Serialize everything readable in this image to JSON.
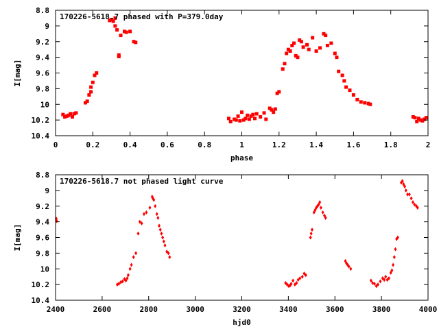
{
  "chart_data": [
    {
      "type": "scatter",
      "title": "170226-5618.7 phased with P=379.0day",
      "xlabel": "phase",
      "ylabel": "I[mag]",
      "xlim": [
        0,
        2
      ],
      "ylim": [
        10.4,
        8.8
      ],
      "y_inverted": true,
      "xticks": [
        "0",
        "0.2",
        "0.4",
        "0.6",
        "0.8",
        "1",
        "1.2",
        "1.4",
        "1.6",
        "1.8",
        "2"
      ],
      "xtick_values": [
        0,
        0.2,
        0.4,
        0.6,
        0.8,
        1.0,
        1.2,
        1.4,
        1.6,
        1.8,
        2.0
      ],
      "yticks": [
        "8.8",
        "9",
        "9.2",
        "9.4",
        "9.6",
        "9.8",
        "10",
        "10.2",
        "10.4"
      ],
      "ytick_values": [
        8.8,
        9.0,
        9.2,
        9.4,
        9.6,
        9.8,
        10.0,
        10.2,
        10.4
      ],
      "grid": false,
      "legend": "none",
      "marker_color": "#ff0000",
      "series": [
        {
          "x": [
            0.04,
            0.05,
            0.06,
            0.07,
            0.08,
            0.09,
            0.1,
            0.11,
            0.16,
            0.17,
            0.18,
            0.19,
            0.19,
            0.2,
            0.21,
            0.22,
            0.29,
            0.3,
            0.31,
            0.32,
            0.32,
            0.33,
            0.34,
            0.34,
            0.35,
            0.37,
            0.38,
            0.4,
            0.42,
            0.43,
            0.93,
            0.94,
            0.96,
            0.97,
            0.98,
            0.99,
            1.0,
            1.01,
            1.02,
            1.03,
            1.04,
            1.05,
            1.06,
            1.07,
            1.08,
            1.1,
            1.12,
            1.13,
            1.15,
            1.16,
            1.17,
            1.18,
            1.19,
            1.2,
            1.22,
            1.23,
            1.24,
            1.25,
            1.26,
            1.27,
            1.28,
            1.29,
            1.3,
            1.31,
            1.32,
            1.33,
            1.35,
            1.36,
            1.38,
            1.4,
            1.42,
            1.44,
            1.45,
            1.46,
            1.48,
            1.5,
            1.51,
            1.52,
            1.54,
            1.55,
            1.56,
            1.58,
            1.6,
            1.62,
            1.64,
            1.66,
            1.68,
            1.69,
            1.92,
            1.93,
            1.94,
            1.95,
            1.96,
            1.97,
            1.98,
            1.99
          ],
          "y": [
            10.13,
            10.16,
            10.15,
            10.14,
            10.12,
            10.16,
            10.12,
            10.11,
            9.98,
            9.96,
            9.88,
            9.84,
            9.78,
            9.72,
            9.63,
            9.6,
            8.93,
            8.92,
            8.94,
            8.9,
            9.0,
            9.05,
            9.37,
            9.39,
            9.12,
            9.07,
            9.08,
            9.07,
            9.2,
            9.21,
            10.18,
            10.22,
            10.19,
            10.2,
            10.15,
            10.21,
            10.1,
            10.2,
            10.18,
            10.14,
            10.19,
            10.15,
            10.13,
            10.18,
            10.12,
            10.16,
            10.11,
            10.19,
            10.05,
            10.07,
            10.1,
            10.06,
            9.86,
            9.84,
            9.55,
            9.48,
            9.35,
            9.3,
            9.32,
            9.25,
            9.22,
            9.38,
            9.4,
            9.18,
            9.2,
            9.27,
            9.24,
            9.3,
            9.15,
            9.32,
            9.28,
            9.1,
            9.12,
            9.25,
            9.22,
            9.35,
            9.4,
            9.58,
            9.63,
            9.7,
            9.78,
            9.82,
            9.88,
            9.94,
            9.97,
            9.98,
            9.99,
            10.0,
            10.16,
            10.17,
            10.22,
            10.18,
            10.2,
            10.21,
            10.19,
            10.17
          ]
        }
      ]
    },
    {
      "type": "scatter",
      "title": "170226-5618.7 not phased light curve",
      "xlabel": "hjd0",
      "ylabel": "I[mag]",
      "xlim": [
        2400,
        4000
      ],
      "ylim": [
        10.4,
        8.8
      ],
      "y_inverted": true,
      "xticks": [
        "2400",
        "2600",
        "2800",
        "3000",
        "3200",
        "3400",
        "3600",
        "3800",
        "4000"
      ],
      "xtick_values": [
        2400,
        2600,
        2800,
        3000,
        3200,
        3400,
        3600,
        3800,
        4000
      ],
      "yticks": [
        "8.8",
        "9",
        "9.2",
        "9.4",
        "9.6",
        "9.8",
        "10",
        "10.2",
        "10.4"
      ],
      "ytick_values": [
        8.8,
        9.0,
        9.2,
        9.4,
        9.6,
        9.8,
        10.0,
        10.2,
        10.4
      ],
      "grid": false,
      "legend": "none",
      "marker_color": "#ff0000",
      "series": [
        {
          "x": [
            2403,
            2405,
            2665,
            2672,
            2680,
            2688,
            2696,
            2702,
            2708,
            2712,
            2720,
            2726,
            2735,
            2745,
            2755,
            2762,
            2770,
            2780,
            2790,
            2805,
            2815,
            2818,
            2822,
            2828,
            2835,
            2840,
            2845,
            2850,
            2855,
            2860,
            2865,
            2870,
            2878,
            2885,
            2890,
            3388,
            3395,
            3402,
            3408,
            3412,
            3420,
            3428,
            3435,
            3442,
            3450,
            3460,
            3468,
            3475,
            3495,
            3498,
            3502,
            3510,
            3515,
            3520,
            3525,
            3530,
            3535,
            3540,
            3548,
            3555,
            3560,
            3645,
            3650,
            3655,
            3660,
            3668,
            3755,
            3762,
            3770,
            3778,
            3785,
            3795,
            3805,
            3812,
            3818,
            3825,
            3832,
            3840,
            3845,
            3850,
            3855,
            3860,
            3865,
            3870,
            3885,
            3890,
            3895,
            3900,
            3905,
            3912,
            3920,
            3928,
            3935,
            3942,
            3950,
            3955
          ],
          "y": [
            9.36,
            9.39,
            10.2,
            10.19,
            10.17,
            10.16,
            10.13,
            10.15,
            10.12,
            10.08,
            10.0,
            9.95,
            9.85,
            9.8,
            9.55,
            9.4,
            9.42,
            9.3,
            9.28,
            9.22,
            9.08,
            9.1,
            9.12,
            9.2,
            9.3,
            9.35,
            9.45,
            9.5,
            9.55,
            9.6,
            9.65,
            9.7,
            9.78,
            9.8,
            9.85,
            10.18,
            10.2,
            10.22,
            10.21,
            10.19,
            10.15,
            10.2,
            10.18,
            10.14,
            10.12,
            10.1,
            10.06,
            10.08,
            9.6,
            9.55,
            9.5,
            9.28,
            9.25,
            9.22,
            9.2,
            9.18,
            9.15,
            9.22,
            9.28,
            9.32,
            9.35,
            9.9,
            9.93,
            9.95,
            9.97,
            10.0,
            10.15,
            10.18,
            10.19,
            10.22,
            10.2,
            10.16,
            10.12,
            10.14,
            10.1,
            10.14,
            10.12,
            10.05,
            10.02,
            9.95,
            9.85,
            9.75,
            9.62,
            9.6,
            8.9,
            8.88,
            8.92,
            8.95,
            9.0,
            9.05,
            9.05,
            9.1,
            9.15,
            9.18,
            9.2,
            9.22
          ]
        }
      ]
    }
  ]
}
